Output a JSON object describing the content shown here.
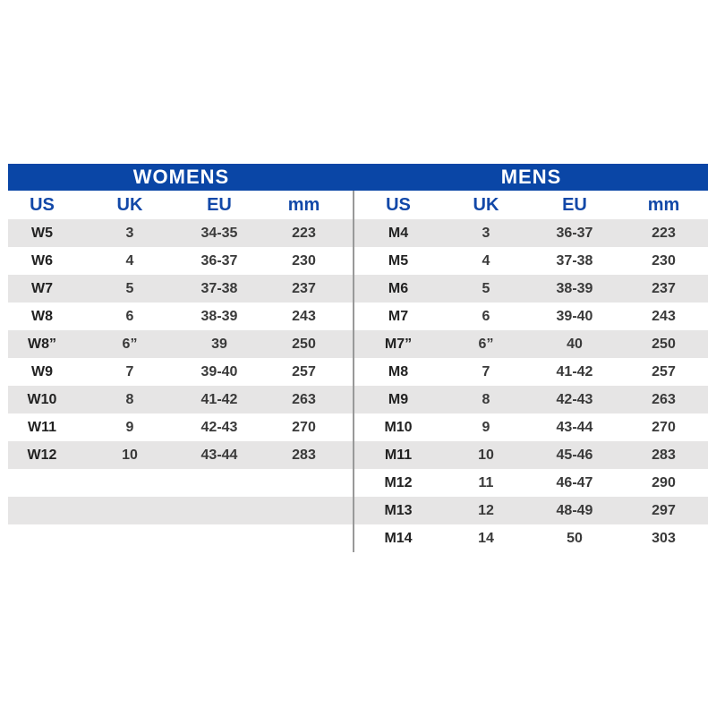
{
  "colors": {
    "header_bar": "#0a46a6",
    "header_text": "#1248a8",
    "stripe": "#e6e5e5"
  },
  "womens": {
    "title": "WOMENS",
    "columns": [
      "US",
      "UK",
      "EU",
      "mm"
    ],
    "rows": [
      [
        "W5",
        "3",
        "34-35",
        "223"
      ],
      [
        "W6",
        "4",
        "36-37",
        "230"
      ],
      [
        "W7",
        "5",
        "37-38",
        "237"
      ],
      [
        "W8",
        "6",
        "38-39",
        "243"
      ],
      [
        "W8”",
        "6”",
        "39",
        "250"
      ],
      [
        "W9",
        "7",
        "39-40",
        "257"
      ],
      [
        "W10",
        "8",
        "41-42",
        "263"
      ],
      [
        "W11",
        "9",
        "42-43",
        "270"
      ],
      [
        "W12",
        "10",
        "43-44",
        "283"
      ]
    ]
  },
  "mens": {
    "title": "MENS",
    "columns": [
      "US",
      "UK",
      "EU",
      "mm"
    ],
    "rows": [
      [
        "M4",
        "3",
        "36-37",
        "223"
      ],
      [
        "M5",
        "4",
        "37-38",
        "230"
      ],
      [
        "M6",
        "5",
        "38-39",
        "237"
      ],
      [
        "M7",
        "6",
        "39-40",
        "243"
      ],
      [
        "M7”",
        "6”",
        "40",
        "250"
      ],
      [
        "M8",
        "7",
        "41-42",
        "257"
      ],
      [
        "M9",
        "8",
        "42-43",
        "263"
      ],
      [
        "M10",
        "9",
        "43-44",
        "270"
      ],
      [
        "M11",
        "10",
        "45-46",
        "283"
      ],
      [
        "M12",
        "11",
        "46-47",
        "290"
      ],
      [
        "M13",
        "12",
        "48-49",
        "297"
      ],
      [
        "M14",
        "14",
        "50",
        "303"
      ]
    ]
  }
}
